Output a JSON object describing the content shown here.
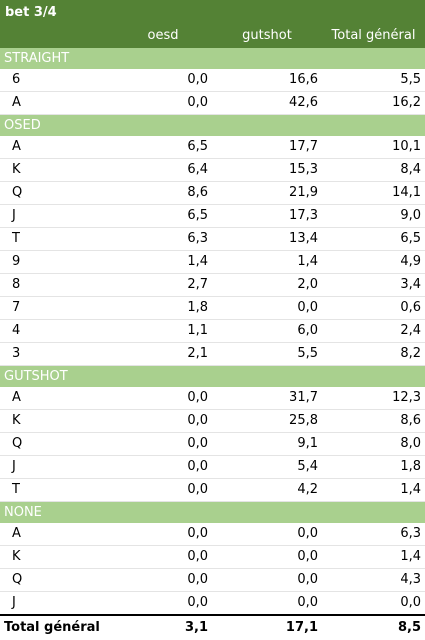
{
  "title": "bet 3/4",
  "columns": [
    "oesd",
    "gutshot",
    "Total général"
  ],
  "groups": [
    {
      "name": "STRAIGHT",
      "rows": [
        {
          "label": "6",
          "values": [
            "0,0",
            "16,6",
            "5,5"
          ]
        },
        {
          "label": "A",
          "values": [
            "0,0",
            "42,6",
            "16,2"
          ]
        }
      ]
    },
    {
      "name": "OSED",
      "rows": [
        {
          "label": "A",
          "values": [
            "6,5",
            "17,7",
            "10,1"
          ]
        },
        {
          "label": "K",
          "values": [
            "6,4",
            "15,3",
            "8,4"
          ]
        },
        {
          "label": "Q",
          "values": [
            "8,6",
            "21,9",
            "14,1"
          ]
        },
        {
          "label": "J",
          "values": [
            "6,5",
            "17,3",
            "9,0"
          ]
        },
        {
          "label": "T",
          "values": [
            "6,3",
            "13,4",
            "6,5"
          ]
        },
        {
          "label": "9",
          "values": [
            "1,4",
            "1,4",
            "4,9"
          ]
        },
        {
          "label": "8",
          "values": [
            "2,7",
            "2,0",
            "3,4"
          ]
        },
        {
          "label": "7",
          "values": [
            "1,8",
            "0,0",
            "0,6"
          ]
        },
        {
          "label": "4",
          "values": [
            "1,1",
            "6,0",
            "2,4"
          ]
        },
        {
          "label": "3",
          "values": [
            "2,1",
            "5,5",
            "8,2"
          ]
        }
      ]
    },
    {
      "name": "GUTSHOT",
      "rows": [
        {
          "label": "A",
          "values": [
            "0,0",
            "31,7",
            "12,3"
          ]
        },
        {
          "label": "K",
          "values": [
            "0,0",
            "25,8",
            "8,6"
          ]
        },
        {
          "label": "Q",
          "values": [
            "0,0",
            "9,1",
            "8,0"
          ]
        },
        {
          "label": "J",
          "values": [
            "0,0",
            "5,4",
            "1,8"
          ]
        },
        {
          "label": "T",
          "values": [
            "0,0",
            "4,2",
            "1,4"
          ]
        }
      ]
    },
    {
      "name": "NONE",
      "rows": [
        {
          "label": "A",
          "values": [
            "0,0",
            "0,0",
            "6,3"
          ]
        },
        {
          "label": "K",
          "values": [
            "0,0",
            "0,0",
            "1,4"
          ]
        },
        {
          "label": "Q",
          "values": [
            "0,0",
            "0,0",
            "4,3"
          ]
        },
        {
          "label": "J",
          "values": [
            "0,0",
            "0,0",
            "0,0"
          ]
        }
      ]
    }
  ],
  "total": {
    "label": "Total général",
    "values": [
      "3,1",
      "17,1",
      "8,5"
    ]
  },
  "colors": {
    "header_bg": "#548235",
    "group_bg": "#a9d08e",
    "header_text": "#ffffff"
  }
}
